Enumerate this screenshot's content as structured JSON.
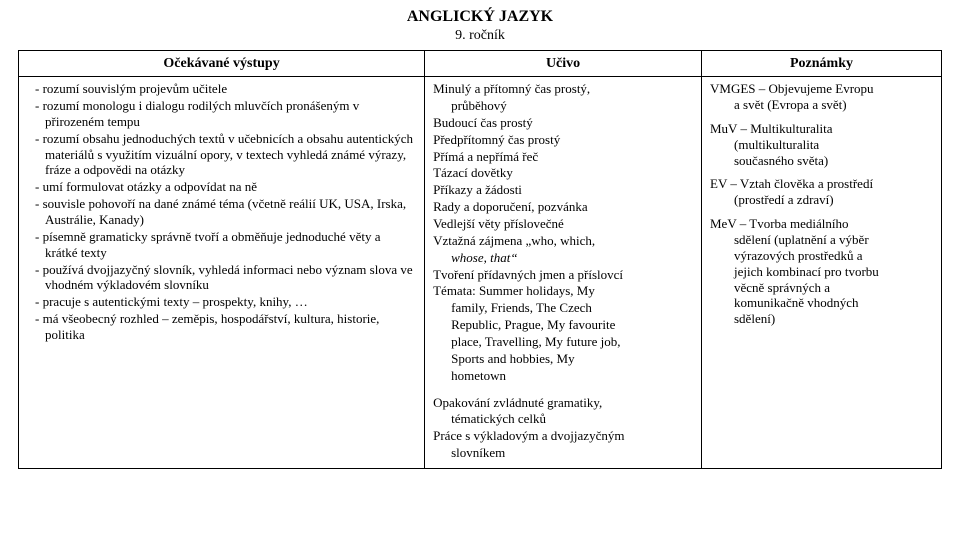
{
  "title": "ANGLICKÝ JAZYK",
  "subtitle": "9. ročník",
  "headers": {
    "a": "Očekávané výstupy",
    "b": "Učivo",
    "c": "Poznámky"
  },
  "colA": {
    "items": [
      "rozumí souvislým projevům učitele",
      "rozumí monologu i dialogu rodilých mluvčích pronášeným v přirozeném tempu",
      "rozumí obsahu jednoduchých textů v učebnicích a obsahu autentických materiálů s využitím vizuální opory, v textech vyhledá známé výrazy, fráze a odpovědi na otázky",
      "umí formulovat otázky a odpovídat na ně",
      "souvisle pohovoří na dané známé téma (včetně reálií UK, USA, Irska, Austrálie, Kanady)",
      "písemně gramaticky správně tvoří a obměňuje jednoduché věty a krátké texty",
      "používá dvojjazyčný slovník, vyhledá informaci nebo význam slova ve vhodném výkladovém slovníku",
      "pracuje s autentickými texty – prospekty, knihy, …",
      "má všeobecný rozhled – zeměpis, hospodářství, kultura, historie, politika"
    ]
  },
  "colB": {
    "l1a": "Minulý a přítomný čas prostý,",
    "l1b": "průběhový",
    "l2": "Budoucí čas prostý",
    "l3": "Předpřítomný čas prostý",
    "l4": "Přímá a nepřímá řeč",
    "l5": "Tázací dovětky",
    "l6": "Příkazy a žádosti",
    "l7": "Rady a doporučení, pozvánka",
    "l8": "Vedlejší věty příslovečné",
    "l9a": "Vztažná zájmena „who, which,",
    "l9b": "whose, that“",
    "l10": "Tvoření přídavných jmen a příslovcí",
    "l11a": "Témata: Summer holidays, My",
    "l11b": "family, Friends, The Czech",
    "l11c": "Republic, Prague, My favourite",
    "l11d": "place, Travelling, My future job,",
    "l11e": "Sports and hobbies, My",
    "l11f": "hometown",
    "l12a": "Opakování zvládnuté gramatiky,",
    "l12b": "tématických celků",
    "l13a": "Práce s výkladovým a dvojjazyčným",
    "l13b": "slovníkem"
  },
  "colC": {
    "n1a": "VMGES – Objevujeme Evropu",
    "n1b": "a svět (Evropa a svět)",
    "n2a": "MuV – Multikulturalita",
    "n2b": "(multikulturalita",
    "n2c": "současného světa)",
    "n3a": "EV – Vztah člověka a prostředí",
    "n3b": "(prostředí a zdraví)",
    "n4a": "MeV – Tvorba mediálního",
    "n4b": "sdělení (uplatnění a výběr",
    "n4c": "výrazových prostředků a",
    "n4d": "jejich kombinací pro tvorbu",
    "n4e": "věcně správných a",
    "n4f": "komunikačně vhodných",
    "n4g": "sdělení)"
  }
}
